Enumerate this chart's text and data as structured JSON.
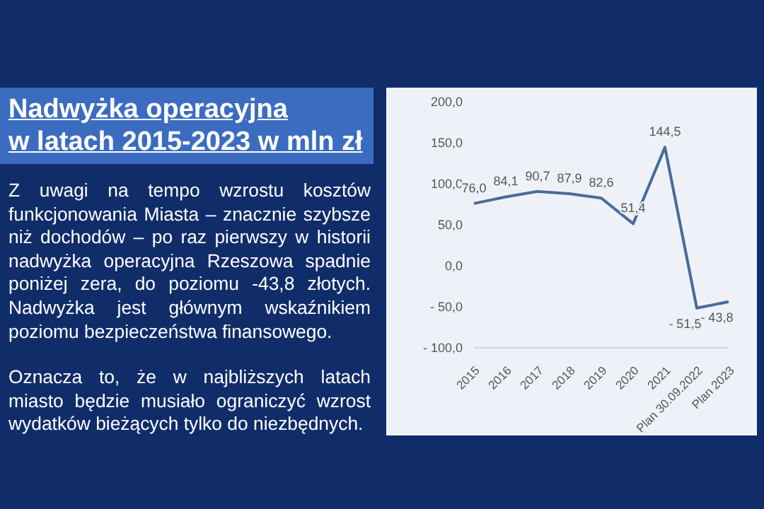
{
  "chart_data": {
    "type": "line",
    "title": "Nadwyżka operacyjna\nw latach 2015-2023 w mln zł",
    "annotations": [
      "Z uwagi na tempo wzrostu kosztów funkcjonowania Miasta – znacznie szybsze niż dochodów – po raz pierwszy w historii nadwyżka operacyjna Rzeszowa spadnie poniżej zera, do poziomu -43,8 złotych. Nadwyżka jest głównym wskaźnikiem poziomu bezpieczeństwa finansowego.",
      "Oznacza to, że w najbliższych latach miasto będzie musiało ograniczyć wzrost wydatków bieżących tylko do niezbędnych."
    ],
    "categories": [
      "2015",
      "2016",
      "2017",
      "2018",
      "2019",
      "2020",
      "2021",
      "Plan 30.09.2022",
      "Plan 2023"
    ],
    "series": [
      {
        "color": "#4a6a9c",
        "values": [
          76.0,
          84.1,
          90.7,
          87.9,
          82.6,
          51.4,
          144.5,
          -51.5,
          -43.8
        ],
        "value_labels": [
          "76,0",
          "84,1",
          "90,7",
          "87,9",
          "82,6",
          "51,4",
          "144,5",
          "- 51,5",
          "- 43,8"
        ]
      }
    ],
    "ylim": [
      -100,
      200
    ],
    "yticks": [
      {
        "value": -100,
        "label": "- 100,0"
      },
      {
        "value": -50,
        "label": "- 50,0"
      },
      {
        "value": 0,
        "label": "0,0"
      },
      {
        "value": 50,
        "label": "50,0"
      },
      {
        "value": 100,
        "label": "100,0"
      },
      {
        "value": 150,
        "label": "150,0"
      },
      {
        "value": 200,
        "label": "200,0"
      }
    ],
    "grid": false,
    "legend": false,
    "marker": "none",
    "line_style": "solid"
  }
}
